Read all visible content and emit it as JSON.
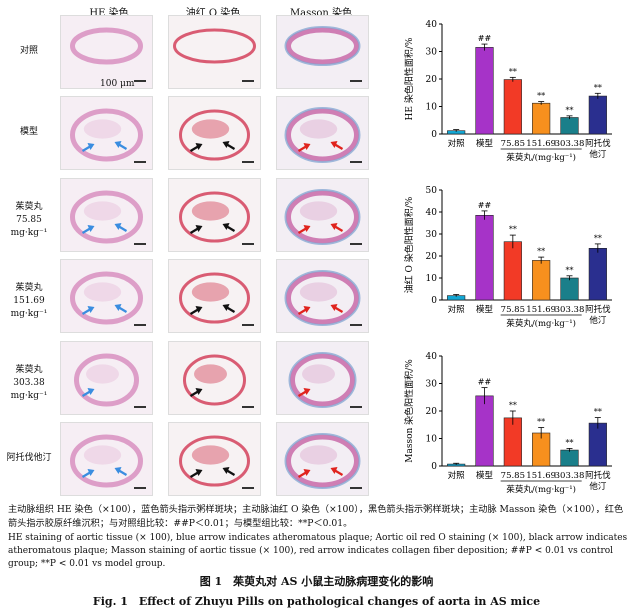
{
  "columns": [
    "HE 染色",
    "油红 O 染色",
    "Masson 染色"
  ],
  "rows": [
    {
      "label_lines": [
        "对照"
      ]
    },
    {
      "label_lines": [
        "模型"
      ]
    },
    {
      "label_lines": [
        "茱萸丸",
        "75.85 mg·kg⁻¹"
      ]
    },
    {
      "label_lines": [
        "茱萸丸",
        "151.69 mg·kg⁻¹"
      ]
    },
    {
      "label_lines": [
        "茱萸丸",
        "303.38 mg·kg⁻¹"
      ]
    },
    {
      "label_lines": [
        "阿托伐他汀"
      ]
    }
  ],
  "scale_label": "100 μm",
  "stain_colors": {
    "he": "#d88fc0",
    "oil": "#d3425c",
    "masson": "#c86aa8",
    "masson_blue": "#7aa0cf"
  },
  "arrow_colors": {
    "blue": "#3a8de0",
    "black": "#111111",
    "red": "#e0231d"
  },
  "chart_data": [
    {
      "type": "bar",
      "ylabel": "HE 染色阳性面积/%",
      "ylim": [
        0,
        40
      ],
      "yticks": [
        0,
        10,
        20,
        30,
        40
      ],
      "categories": [
        "对照",
        "模型",
        "75.85",
        "151.69",
        "303.38",
        "阿托伐他汀"
      ],
      "values": [
        1.2,
        31.5,
        19.8,
        11.2,
        6.0,
        13.8
      ],
      "errors": [
        0.4,
        1.2,
        0.8,
        0.6,
        0.6,
        1.0
      ],
      "marks": [
        "",
        "##",
        "**",
        "**",
        "**",
        "**"
      ]
    },
    {
      "type": "bar",
      "ylabel": "油红 O 染色阳性面积/%",
      "ylim": [
        0,
        50
      ],
      "yticks": [
        0,
        10,
        20,
        30,
        40,
        50
      ],
      "categories": [
        "对照",
        "模型",
        "75.85",
        "151.69",
        "303.38",
        "阿托伐他汀"
      ],
      "values": [
        2.0,
        38.5,
        26.5,
        18.0,
        10.0,
        23.5
      ],
      "errors": [
        0.5,
        2.0,
        3.0,
        1.5,
        1.0,
        2.0
      ],
      "marks": [
        "",
        "##",
        "**",
        "**",
        "**",
        "**"
      ]
    },
    {
      "type": "bar",
      "ylabel": "Masson 染色阳性面积/%",
      "ylim": [
        0,
        40
      ],
      "yticks": [
        0,
        10,
        20,
        30,
        40
      ],
      "categories": [
        "对照",
        "模型",
        "75.85",
        "151.69",
        "303.38",
        "阿托伐他汀"
      ],
      "values": [
        0.7,
        25.5,
        17.5,
        12.0,
        5.8,
        15.6
      ],
      "errors": [
        0.3,
        3.0,
        2.5,
        2.0,
        0.6,
        2.0
      ],
      "marks": [
        "",
        "##",
        "**",
        "**",
        "**",
        "**"
      ]
    }
  ],
  "bar_colors": [
    "#13a6d3",
    "#a633c8",
    "#f23a26",
    "#f7901e",
    "#1a7f8a",
    "#2a2f8f"
  ],
  "xgroup_label": "茱萸丸/(mg·kg⁻¹)",
  "caption_cn": "主动脉组织 HE 染色（×100），蓝色箭头指示粥样斑块；主动脉油红 O 染色（×100），黑色箭头指示粥样斑块；主动脉 Masson 染色（×100），红色箭头指示胶原纤维沉积；与对照组比较：##P＜0.01；与模型组比较：**P＜0.01。",
  "caption_en": "HE staining of aortic tissue (× 100), blue arrow indicates atheromatous plaque; Aortic oil red O staining (× 100), black arrow indicates atheromatous plaque; Masson staining of aortic tissue (× 100), red arrow indicates collagen fiber deposition; ##P < 0.01 vs control group; **P < 0.01 vs model group.",
  "fig_title_cn": "图 1　茱萸丸对 AS 小鼠主动脉病理变化的影响",
  "fig_title_en": "Fig. 1　Effect of Zhuyu Pills on pathological changes of aorta in AS mice"
}
